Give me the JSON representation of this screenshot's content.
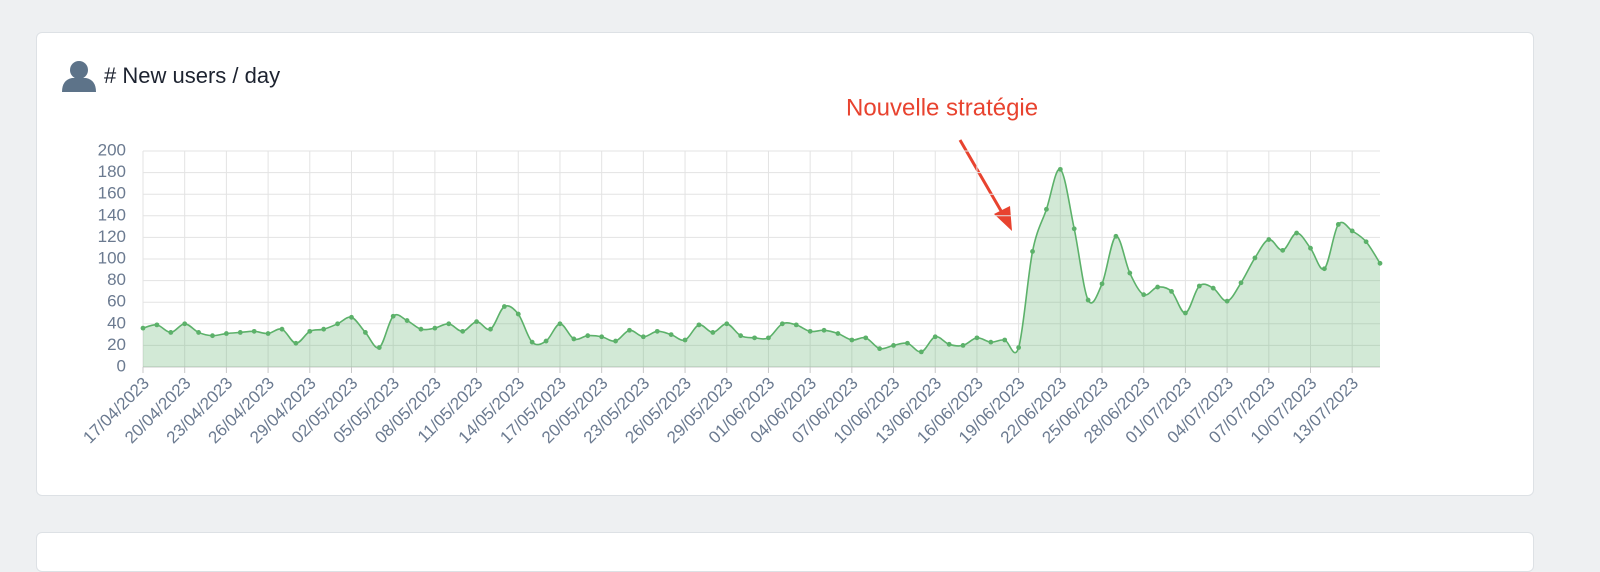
{
  "chart_data": {
    "type": "line",
    "title": "# New users / day",
    "annotations": [
      "Nouvelle stratégie"
    ],
    "categories": [
      "17/04/2023",
      null,
      null,
      "20/04/2023",
      null,
      null,
      "23/04/2023",
      null,
      null,
      "26/04/2023",
      null,
      null,
      "29/04/2023",
      null,
      null,
      "02/05/2023",
      null,
      null,
      "05/05/2023",
      null,
      null,
      "08/05/2023",
      null,
      null,
      "11/05/2023",
      null,
      null,
      "14/05/2023",
      null,
      null,
      "17/05/2023",
      null,
      null,
      "20/05/2023",
      null,
      null,
      "23/05/2023",
      null,
      null,
      "26/05/2023",
      null,
      null,
      "29/05/2023",
      null,
      null,
      "01/06/2023",
      null,
      null,
      "04/06/2023",
      null,
      null,
      "07/06/2023",
      null,
      null,
      "10/06/2023",
      null,
      null,
      "13/06/2023",
      null,
      null,
      "16/06/2023",
      null,
      null,
      "19/06/2023",
      null,
      null,
      "22/06/2023",
      null,
      null,
      "25/06/2023",
      null,
      null,
      "28/06/2023",
      null,
      null,
      "01/07/2023",
      null,
      null,
      "04/07/2023",
      null,
      null,
      "07/07/2023",
      null,
      null,
      "10/07/2023",
      null,
      null,
      "13/07/2023",
      null,
      null
    ],
    "series": [
      {
        "color": "#5cb16a",
        "values": [
          36,
          39,
          32,
          40,
          32,
          29,
          31,
          32,
          33,
          31,
          35,
          22,
          33,
          35,
          40,
          46,
          32,
          18,
          47,
          43,
          35,
          36,
          40,
          33,
          42,
          35,
          56,
          49,
          23,
          24,
          40,
          26,
          29,
          28,
          24,
          34,
          28,
          33,
          30,
          25,
          39,
          32,
          40,
          29,
          27,
          27,
          40,
          39,
          33,
          34,
          31,
          25,
          27,
          17,
          20,
          22,
          14,
          28,
          21,
          20,
          27,
          23,
          25,
          18,
          107,
          146,
          183,
          128,
          62,
          77,
          121,
          87,
          67,
          74,
          70,
          50,
          75,
          73,
          61,
          78,
          101,
          118,
          108,
          124,
          110,
          91,
          132,
          126,
          116,
          96
        ]
      }
    ],
    "ylim": [
      0,
      200
    ],
    "yticks": [
      0,
      20,
      40,
      60,
      80,
      100,
      120,
      140,
      160,
      180,
      200
    ],
    "grid": true
  }
}
